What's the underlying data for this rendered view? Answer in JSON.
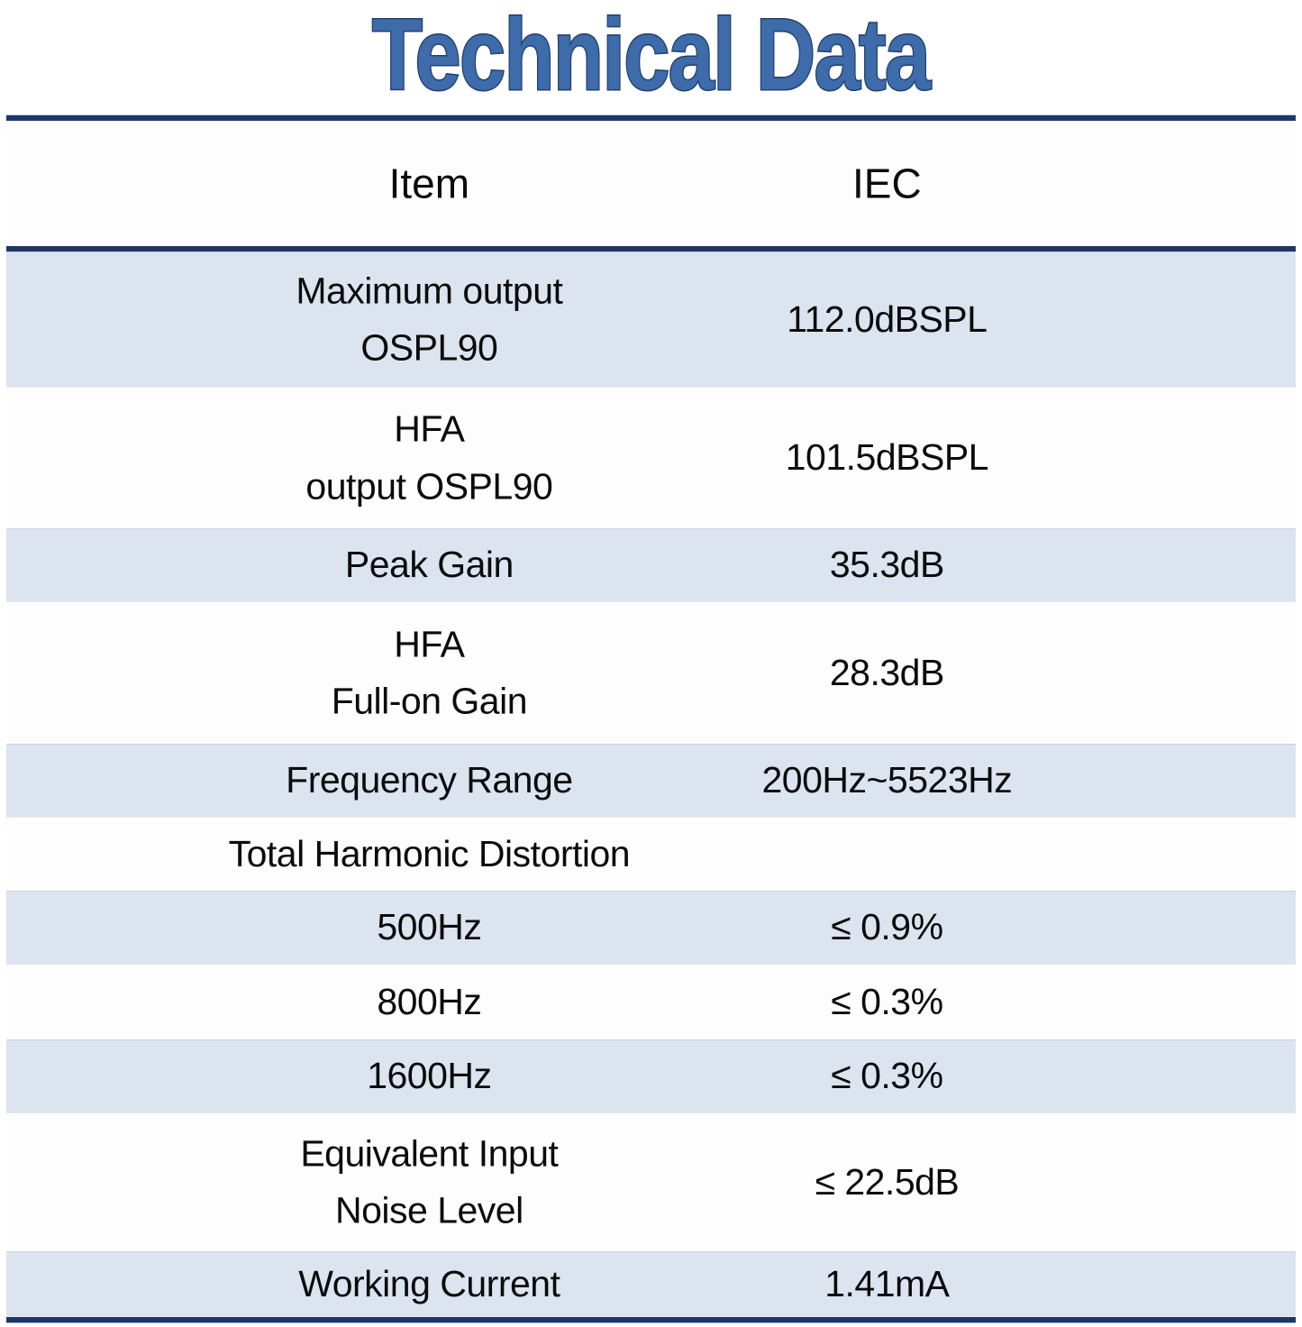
{
  "title": "Technical Data",
  "table": {
    "headers": {
      "item": "Item",
      "value": "IEC"
    },
    "rows": [
      {
        "item": "Maximum output\nOSPL90",
        "value": "112.0dBSPL"
      },
      {
        "item": "HFA\noutput OSPL90",
        "value": "101.5dBSPL"
      },
      {
        "item": "Peak Gain",
        "value": "35.3dB"
      },
      {
        "item": "HFA\nFull-on Gain",
        "value": "28.3dB"
      },
      {
        "item": "Frequency Range",
        "value": "200Hz~5523Hz"
      },
      {
        "item": "Total Harmonic Distortion",
        "value": ""
      },
      {
        "item": "500Hz",
        "value": "≤ 0.9%"
      },
      {
        "item": "800Hz",
        "value": "≤ 0.3%"
      },
      {
        "item": "1600Hz",
        "value": "≤ 0.3%"
      },
      {
        "item": "Equivalent Input\nNoise Level",
        "value": "≤ 22.5dB"
      },
      {
        "item": "Working Current",
        "value": "1.41mA"
      }
    ]
  },
  "colors": {
    "title_fill": "#3e6ba9",
    "title_outline": "#21406f",
    "rule_navy": "#1e3865",
    "row_shaded": "#dce4f0",
    "text": "#0b0b0b"
  }
}
